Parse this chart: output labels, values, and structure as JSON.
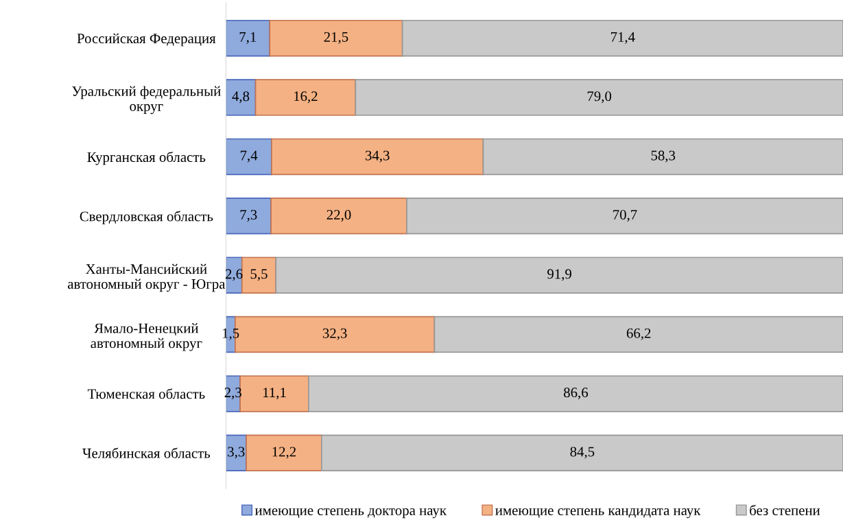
{
  "chart_data": {
    "type": "bar",
    "orientation": "horizontal",
    "stacked": true,
    "legend": "bottom",
    "grid": false,
    "tick_labels": "y",
    "categories": [
      "Российская Федерация",
      "Уральский федеральный\nокруг",
      "Курганская область",
      "Свердловская область",
      "Ханты-Мансийский\nавтономный округ - Югра",
      "Ямало-Ненецкий\nавтономный округ",
      "Тюменская область",
      "Челябинская область"
    ],
    "series": [
      {
        "name": "имеющие степень доктора наук",
        "color": "#8faadc",
        "values": [
          7.1,
          4.8,
          7.4,
          7.3,
          2.6,
          1.5,
          2.3,
          3.3
        ],
        "value_labels": [
          "7,1",
          "4,8",
          "7,4",
          "7,3",
          "2,6",
          "1,5",
          "2,3",
          "3,3"
        ]
      },
      {
        "name": "имеющие степень кандидата наук",
        "color": "#f4b183",
        "values": [
          21.5,
          16.2,
          34.3,
          22.0,
          5.5,
          32.3,
          11.1,
          12.2
        ],
        "value_labels": [
          "21,5",
          "16,2",
          "34,3",
          "22,0",
          "5,5",
          "32,3",
          "11,1",
          "12,2"
        ]
      },
      {
        "name": "без степени",
        "color": "#c9c9c9",
        "values": [
          71.4,
          79.0,
          58.3,
          70.7,
          91.9,
          66.2,
          86.6,
          84.5
        ],
        "value_labels": [
          "71,4",
          "79,0",
          "58,3",
          "70,7",
          "91,9",
          "66,2",
          "86,6",
          "84,5"
        ]
      }
    ]
  }
}
